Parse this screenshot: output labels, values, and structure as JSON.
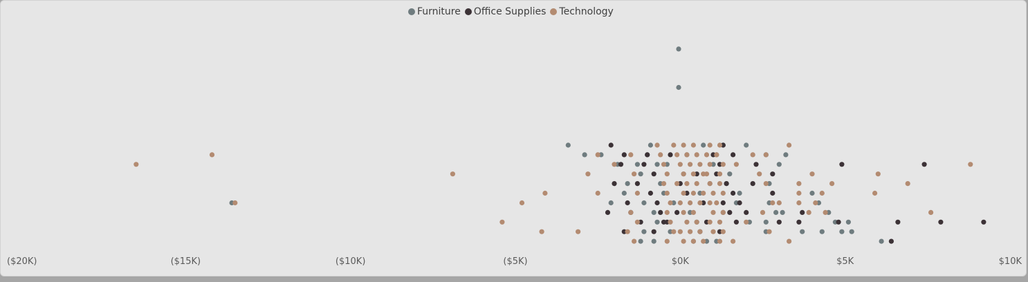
{
  "chart_data": {
    "type": "scatter",
    "title": "",
    "xlabel": "",
    "ylabel": "",
    "xlim": [
      -20000,
      10000
    ],
    "ylim": [
      -1,
      21
    ],
    "grid": false,
    "legend_position": "top-center",
    "x_ticks": [
      {
        "value": -20000,
        "label": "($20K)"
      },
      {
        "value": -15000,
        "label": "($15K)"
      },
      {
        "value": -10000,
        "label": "($10K)"
      },
      {
        "value": -5000,
        "label": "($5K)"
      },
      {
        "value": 0,
        "label": "$0K"
      },
      {
        "value": 5000,
        "label": "$5K"
      },
      {
        "value": 10000,
        "label": "$10K"
      }
    ],
    "series": [
      {
        "name": "Furniture",
        "color": "#6f7c7f",
        "points": [
          [
            -50,
            20
          ],
          [
            -50,
            16
          ],
          [
            -3400,
            10
          ],
          [
            -2900,
            9
          ],
          [
            -2400,
            9
          ],
          [
            -1900,
            8
          ],
          [
            -1600,
            6
          ],
          [
            -1700,
            5
          ],
          [
            -2100,
            4
          ],
          [
            -1200,
            7
          ],
          [
            -1300,
            8
          ],
          [
            -1100,
            4
          ],
          [
            -800,
            3
          ],
          [
            -900,
            10
          ],
          [
            -1000,
            9
          ],
          [
            -700,
            8
          ],
          [
            -600,
            6
          ],
          [
            -500,
            5
          ],
          [
            -700,
            2
          ],
          [
            -1100,
            1
          ],
          [
            -1200,
            0
          ],
          [
            700,
            10
          ],
          [
            1300,
            10
          ],
          [
            2000,
            10
          ],
          [
            1100,
            9
          ],
          [
            1000,
            8
          ],
          [
            1500,
            7
          ],
          [
            1400,
            6
          ],
          [
            1800,
            5
          ],
          [
            1700,
            4
          ],
          [
            1300,
            3
          ],
          [
            2100,
            2
          ],
          [
            2600,
            9
          ],
          [
            3200,
            9
          ],
          [
            3000,
            8
          ],
          [
            2700,
            6
          ],
          [
            2900,
            3
          ],
          [
            2600,
            2
          ],
          [
            2600,
            1
          ],
          [
            3100,
            3
          ],
          [
            2700,
            4
          ],
          [
            4200,
            4
          ],
          [
            4500,
            3
          ],
          [
            4700,
            2
          ],
          [
            4300,
            1
          ],
          [
            3700,
            1
          ],
          [
            4900,
            1
          ],
          [
            4000,
            5
          ],
          [
            5100,
            2
          ],
          [
            5200,
            1
          ],
          [
            6100,
            0
          ],
          [
            -13600,
            4
          ],
          [
            300,
            3
          ],
          [
            600,
            5
          ],
          [
            -200,
            4
          ],
          [
            100,
            7
          ],
          [
            900,
            6
          ],
          [
            -400,
            8
          ],
          [
            500,
            2
          ],
          [
            200,
            9
          ],
          [
            -300,
            1
          ],
          [
            400,
            0
          ],
          [
            -800,
            0
          ],
          [
            800,
            0
          ],
          [
            1100,
            0
          ]
        ]
      },
      {
        "name": "Office Supplies",
        "color": "#3c3236",
        "points": [
          [
            -2100,
            10
          ],
          [
            -1700,
            9
          ],
          [
            -1800,
            8
          ],
          [
            -2000,
            6
          ],
          [
            -1300,
            6
          ],
          [
            -1600,
            4
          ],
          [
            -2200,
            3
          ],
          [
            -1500,
            3
          ],
          [
            -1200,
            2
          ],
          [
            -1700,
            1
          ],
          [
            -1000,
            9
          ],
          [
            -1100,
            8
          ],
          [
            -800,
            7
          ],
          [
            -900,
            5
          ],
          [
            -700,
            4
          ],
          [
            -600,
            3
          ],
          [
            -500,
            2
          ],
          [
            -800,
            1
          ],
          [
            1300,
            10
          ],
          [
            1600,
            9
          ],
          [
            1200,
            8
          ],
          [
            1100,
            7
          ],
          [
            1400,
            6
          ],
          [
            1600,
            5
          ],
          [
            1300,
            4
          ],
          [
            1800,
            4
          ],
          [
            1500,
            3
          ],
          [
            2000,
            3
          ],
          [
            1700,
            2
          ],
          [
            1200,
            1
          ],
          [
            800,
            2
          ],
          [
            1000,
            9
          ],
          [
            2300,
            8
          ],
          [
            2800,
            7
          ],
          [
            2200,
            6
          ],
          [
            2800,
            5
          ],
          [
            3000,
            2
          ],
          [
            3700,
            3
          ],
          [
            3600,
            2
          ],
          [
            4900,
            8
          ],
          [
            4800,
            2
          ],
          [
            6600,
            2
          ],
          [
            7400,
            8
          ],
          [
            7900,
            2
          ],
          [
            9200,
            2
          ],
          [
            6400,
            0
          ],
          [
            -100,
            3
          ],
          [
            200,
            5
          ],
          [
            500,
            7
          ],
          [
            -300,
            9
          ],
          [
            700,
            4
          ],
          [
            0,
            6
          ],
          [
            -400,
            2
          ],
          [
            600,
            1
          ]
        ]
      },
      {
        "name": "Technology",
        "color": "#b38b71",
        "points": [
          [
            -16500,
            8
          ],
          [
            -14200,
            9
          ],
          [
            -13500,
            4
          ],
          [
            -6900,
            7
          ],
          [
            -4800,
            4
          ],
          [
            -5400,
            2
          ],
          [
            -4100,
            5
          ],
          [
            -4200,
            1
          ],
          [
            -3100,
            1
          ],
          [
            -2800,
            7
          ],
          [
            -2500,
            5
          ],
          [
            -2500,
            9
          ],
          [
            -2000,
            8
          ],
          [
            -1500,
            9
          ],
          [
            -1400,
            7
          ],
          [
            -1300,
            5
          ],
          [
            -1500,
            3
          ],
          [
            -1300,
            2
          ],
          [
            -1600,
            1
          ],
          [
            -1400,
            0
          ],
          [
            -700,
            10
          ],
          [
            -600,
            9
          ],
          [
            -500,
            8
          ],
          [
            -400,
            7
          ],
          [
            -500,
            6
          ],
          [
            -400,
            5
          ],
          [
            -300,
            4
          ],
          [
            -400,
            3
          ],
          [
            -300,
            2
          ],
          [
            -200,
            1
          ],
          [
            -400,
            0
          ],
          [
            -200,
            10
          ],
          [
            100,
            10
          ],
          [
            400,
            10
          ],
          [
            -100,
            9
          ],
          [
            200,
            9
          ],
          [
            500,
            9
          ],
          [
            0,
            8
          ],
          [
            300,
            8
          ],
          [
            600,
            8
          ],
          [
            100,
            7
          ],
          [
            400,
            7
          ],
          [
            700,
            7
          ],
          [
            -100,
            6
          ],
          [
            200,
            6
          ],
          [
            500,
            6
          ],
          [
            100,
            5
          ],
          [
            400,
            5
          ],
          [
            700,
            5
          ],
          [
            0,
            4
          ],
          [
            300,
            4
          ],
          [
            600,
            4
          ],
          [
            100,
            3
          ],
          [
            400,
            3
          ],
          [
            200,
            2
          ],
          [
            500,
            2
          ],
          [
            0,
            1
          ],
          [
            300,
            1
          ],
          [
            600,
            1
          ],
          [
            100,
            0
          ],
          [
            400,
            0
          ],
          [
            700,
            0
          ],
          [
            900,
            10
          ],
          [
            1200,
            10
          ],
          [
            800,
            9
          ],
          [
            1100,
            9
          ],
          [
            900,
            8
          ],
          [
            1300,
            8
          ],
          [
            800,
            7
          ],
          [
            1200,
            7
          ],
          [
            900,
            6
          ],
          [
            1200,
            6
          ],
          [
            1000,
            5
          ],
          [
            1300,
            5
          ],
          [
            900,
            4
          ],
          [
            1100,
            4
          ],
          [
            1000,
            3
          ],
          [
            1300,
            3
          ],
          [
            900,
            2
          ],
          [
            1200,
            2
          ],
          [
            1000,
            1
          ],
          [
            1300,
            1
          ],
          [
            1200,
            0
          ],
          [
            1600,
            0
          ],
          [
            2200,
            9
          ],
          [
            2600,
            9
          ],
          [
            3300,
            10
          ],
          [
            1700,
            8
          ],
          [
            2400,
            7
          ],
          [
            2600,
            6
          ],
          [
            2800,
            4
          ],
          [
            3000,
            4
          ],
          [
            2000,
            2
          ],
          [
            2500,
            3
          ],
          [
            2700,
            1
          ],
          [
            3300,
            0
          ],
          [
            3600,
            6
          ],
          [
            4000,
            7
          ],
          [
            4600,
            6
          ],
          [
            4300,
            5
          ],
          [
            3600,
            5
          ],
          [
            3600,
            4
          ],
          [
            4100,
            4
          ],
          [
            3900,
            3
          ],
          [
            4400,
            3
          ],
          [
            6000,
            7
          ],
          [
            5900,
            5
          ],
          [
            6900,
            6
          ],
          [
            7600,
            3
          ],
          [
            8800,
            8
          ]
        ]
      }
    ]
  }
}
